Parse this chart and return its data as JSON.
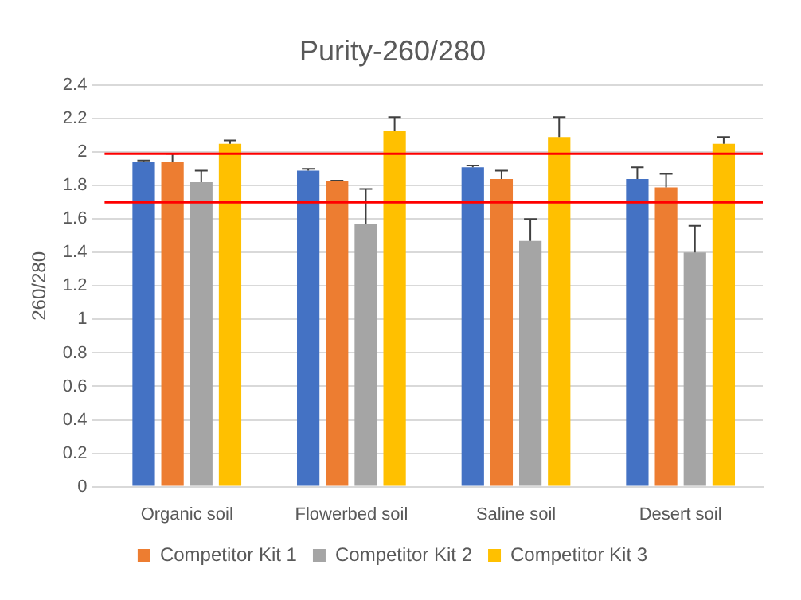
{
  "chart_data": {
    "type": "bar",
    "title": "Purity-260/280",
    "ylabel": "260/280",
    "categories": [
      "Organic soil",
      "Flowerbed soil",
      "Saline soil",
      "Desert soil"
    ],
    "series": [
      {
        "color": "#4472c4",
        "values": [
          1.94,
          1.89,
          1.91,
          1.84
        ],
        "errors": [
          [
            1.94,
            1.95
          ],
          [
            1.89,
            1.9
          ],
          [
            1.91,
            1.92
          ],
          [
            1.84,
            1.91
          ]
        ]
      },
      {
        "name": "Competitor Kit 1",
        "color": "#ed7d31",
        "values": [
          1.94,
          1.83,
          1.84,
          1.79
        ],
        "errors": [
          [
            1.94,
            1.99
          ],
          [
            1.83,
            1.83
          ],
          [
            1.84,
            1.89
          ],
          [
            1.79,
            1.87
          ]
        ]
      },
      {
        "name": "Competitor Kit 2",
        "color": "#a5a5a5",
        "values": [
          1.82,
          1.57,
          1.47,
          1.4
        ],
        "errors": [
          [
            1.82,
            1.89
          ],
          [
            1.57,
            1.78
          ],
          [
            1.47,
            1.6
          ],
          [
            1.4,
            1.56
          ]
        ]
      },
      {
        "name": "Competitor Kit 3",
        "color": "#ffc000",
        "values": [
          2.05,
          2.13,
          2.09,
          2.05
        ],
        "errors": [
          [
            2.05,
            2.07
          ],
          [
            2.13,
            2.21
          ],
          [
            2.09,
            2.21
          ],
          [
            2.05,
            2.09
          ]
        ]
      }
    ],
    "ylim": [
      0,
      2.4
    ],
    "yticks": [
      0,
      0.2,
      0.4,
      0.6,
      0.8,
      1,
      1.2,
      1.4,
      1.6,
      1.8,
      2,
      2.2,
      2.4
    ],
    "ref_lines": [
      {
        "axis": "y",
        "value": 1.99,
        "color": "#ff0000"
      },
      {
        "axis": "y",
        "value": 1.7,
        "color": "#ff0000"
      }
    ],
    "grid": "y",
    "legend": "bottom"
  }
}
